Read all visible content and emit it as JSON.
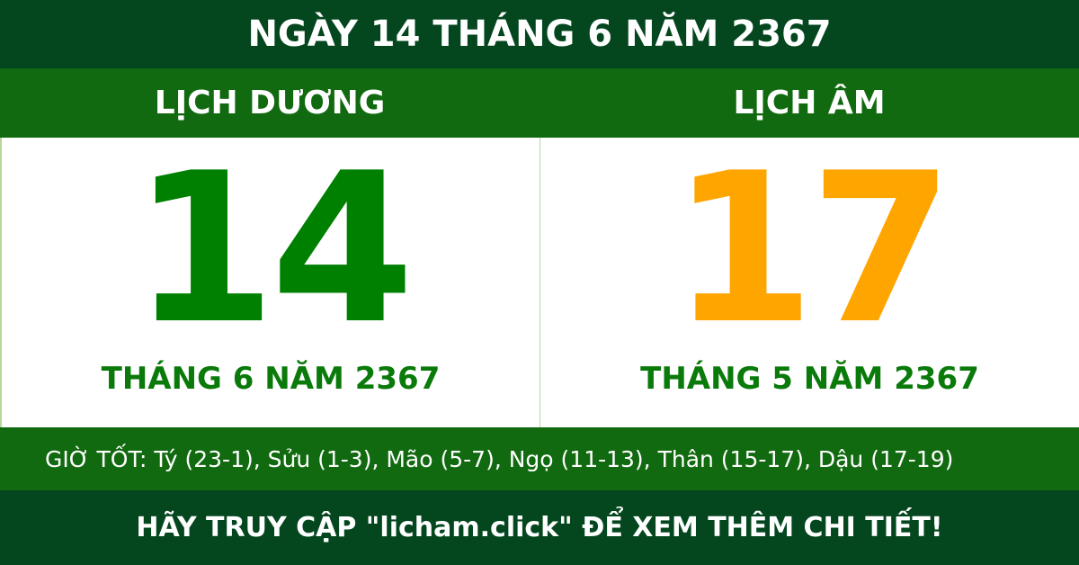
{
  "title": "NGÀY 14 THÁNG 6 NĂM 2367",
  "solar": {
    "heading": "LỊCH DƯƠNG",
    "day": "14",
    "month_year": "THÁNG 6 NĂM 2367",
    "color": "#008000"
  },
  "lunar": {
    "heading": "LỊCH ÂM",
    "day": "17",
    "month_year": "THÁNG 5 NĂM 2367",
    "color": "#ffa500"
  },
  "good_hours": "GIỜ TỐT: Tý (23-1), Sửu (1-3), Mão (5-7), Ngọ (11-13), Thân (15-17), Dậu (17-19)",
  "footer": "HÃY TRUY CẬP \"licham.click\" ĐỂ XEM THÊM CHI TIẾT!"
}
